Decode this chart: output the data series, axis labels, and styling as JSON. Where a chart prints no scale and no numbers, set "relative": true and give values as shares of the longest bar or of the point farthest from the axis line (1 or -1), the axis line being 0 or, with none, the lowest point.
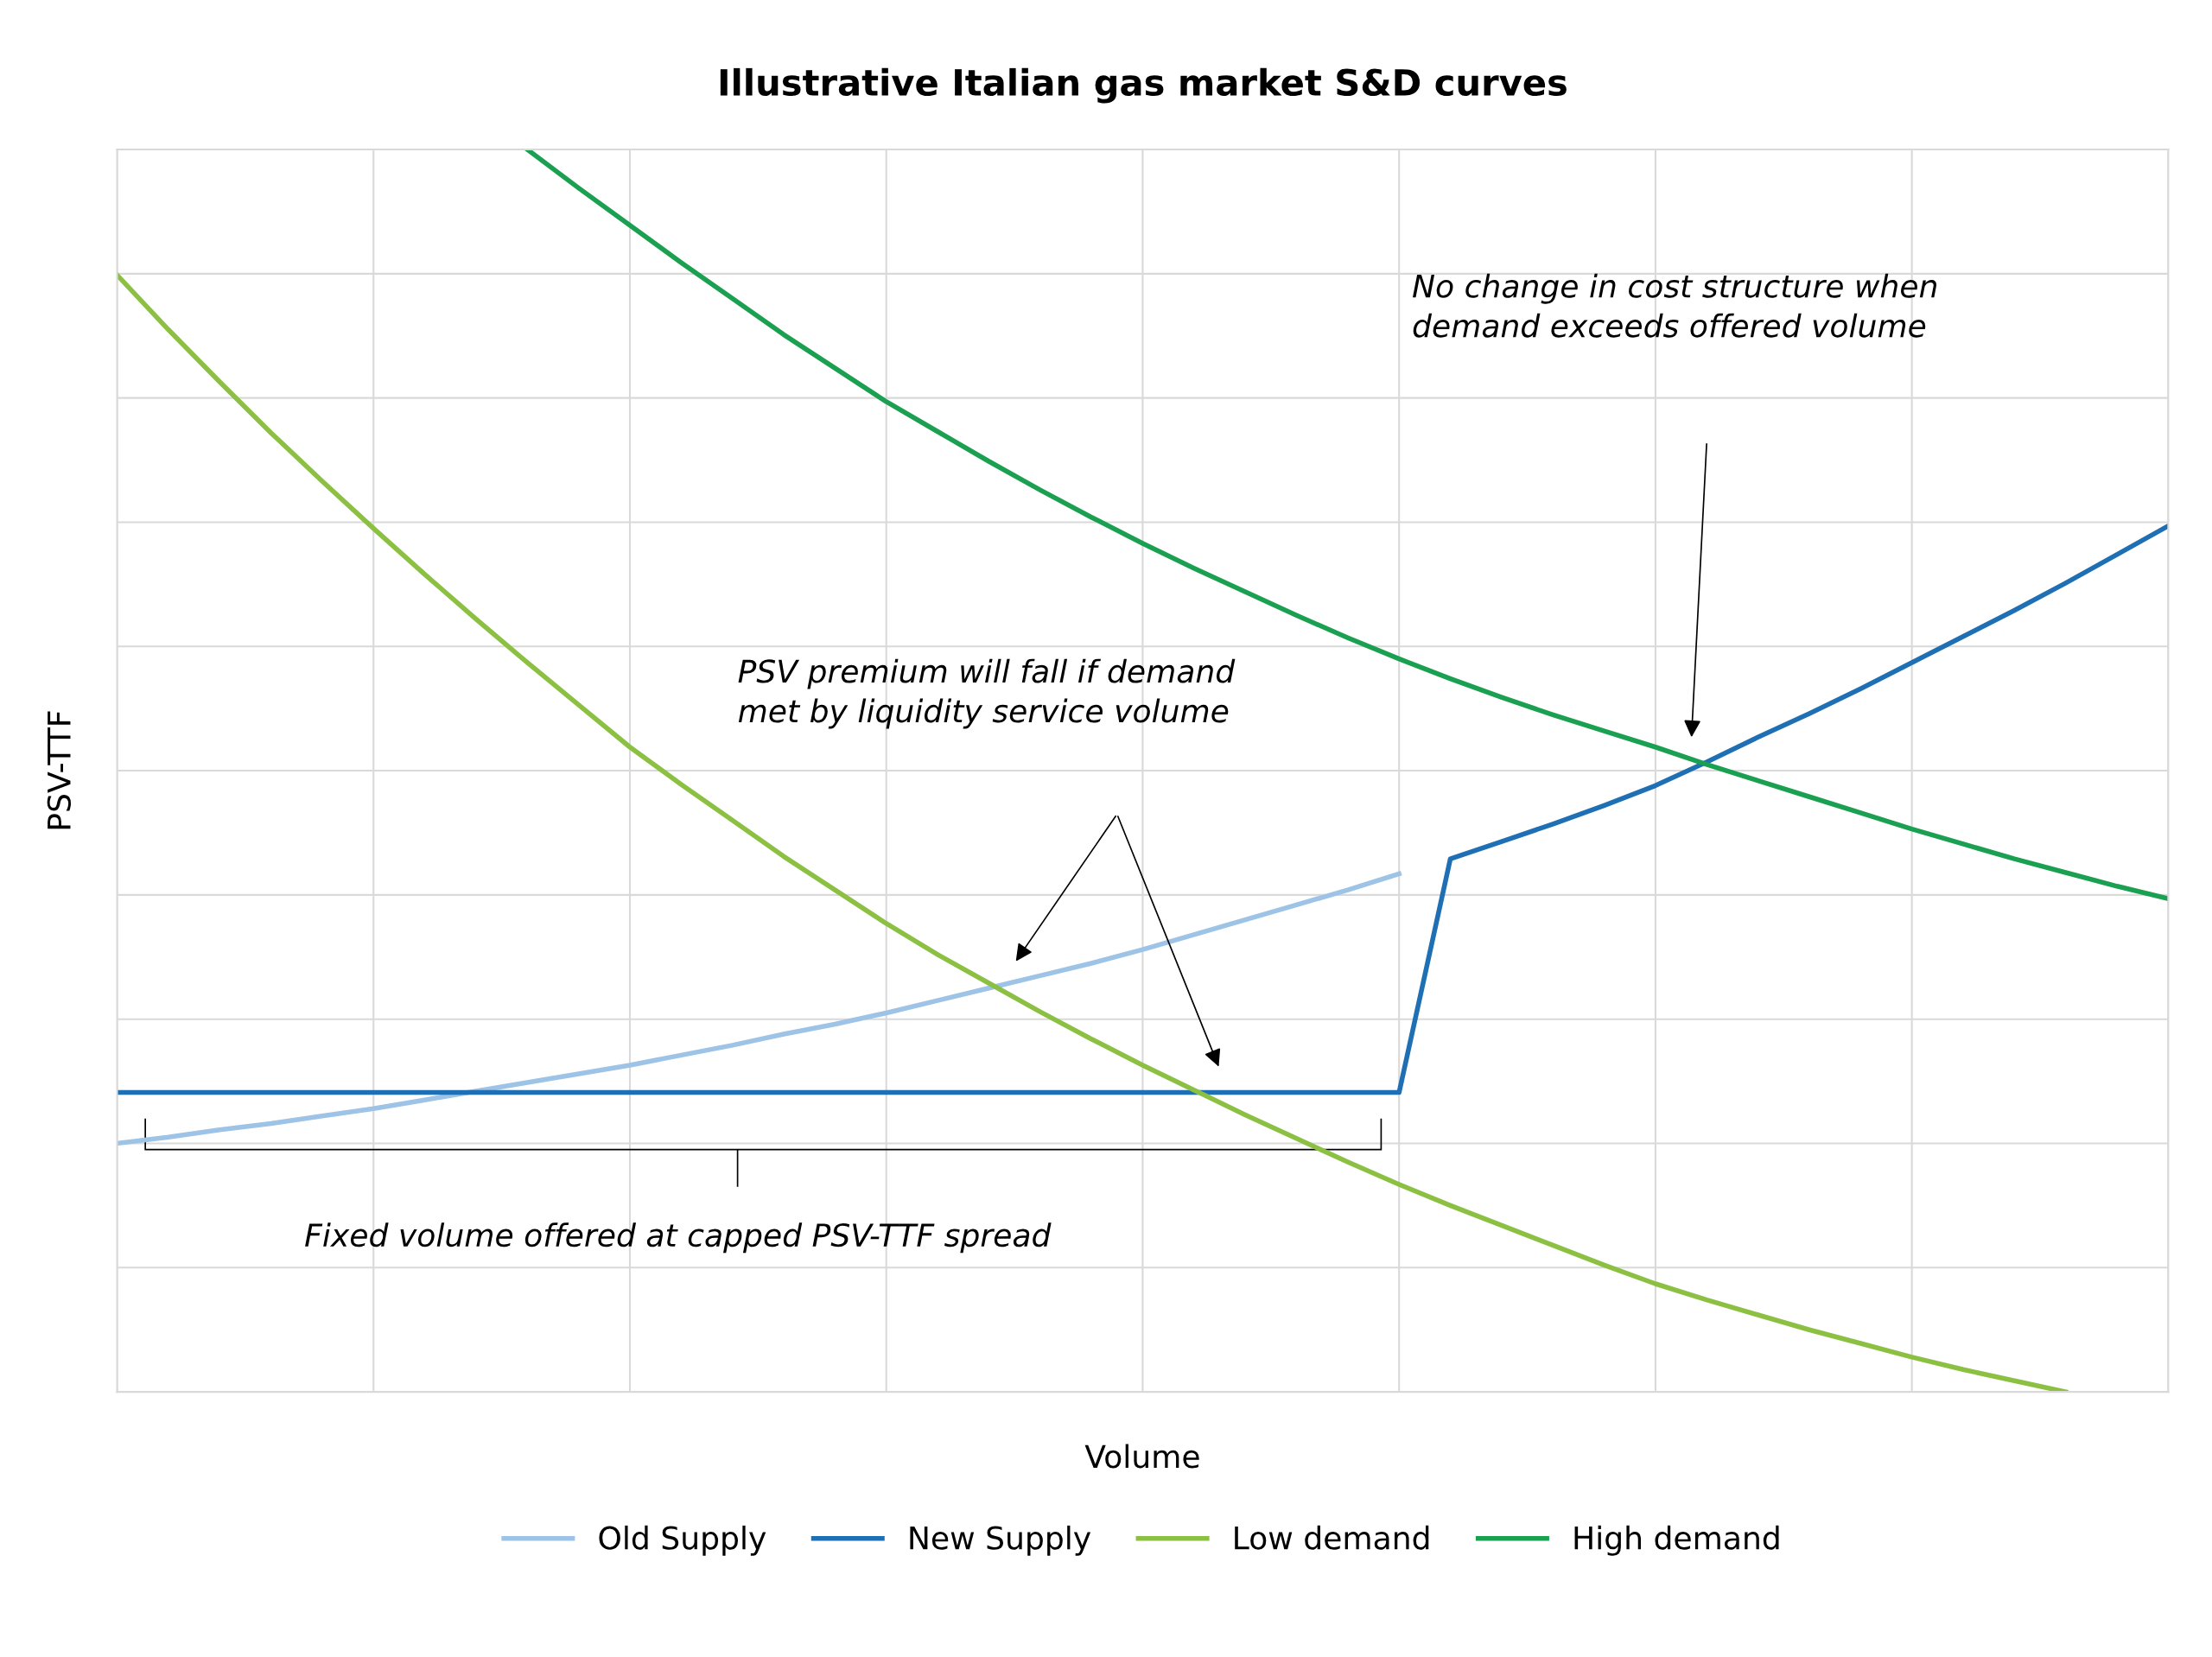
{
  "chart_data": {
    "type": "line",
    "title": "Illustrative Italian gas market S&D curves",
    "xlabel": "Volume",
    "ylabel": "PSV-TTF",
    "relative": true,
    "grid": true,
    "legend": "bottom",
    "marker": "none",
    "line_style": "solid",
    "categories": [
      null,
      null,
      null,
      null,
      null,
      null,
      null,
      null,
      null,
      null,
      null,
      null,
      null,
      null,
      null,
      null,
      null,
      null,
      null,
      null,
      null,
      null,
      null,
      null,
      null,
      null,
      null,
      null,
      null,
      null,
      null,
      null,
      null,
      null,
      null,
      null,
      null,
      null,
      null,
      null,
      null
    ],
    "series": [
      {
        "name": "Old Supply",
        "color": "#9dc3e6",
        "values": [
          0.2,
          0.205,
          0.211,
          0.216,
          0.222,
          0.228,
          0.235,
          0.242,
          0.249,
          0.256,
          0.263,
          0.271,
          0.279,
          0.288,
          0.296,
          0.305,
          0.315,
          0.325,
          0.335,
          0.345,
          0.356,
          0.368,
          0.38,
          0.392,
          0.404,
          0.417,
          null,
          null,
          null,
          null,
          null,
          null,
          null,
          null,
          null,
          null,
          null,
          null,
          null,
          null,
          null
        ]
      },
      {
        "name": "New Supply",
        "color": "#1f6fb4",
        "values": [
          0.241,
          0.241,
          0.241,
          0.241,
          0.241,
          0.241,
          0.241,
          0.241,
          0.241,
          0.241,
          0.241,
          0.241,
          0.241,
          0.241,
          0.241,
          0.241,
          0.241,
          0.241,
          0.241,
          0.241,
          0.241,
          0.241,
          0.241,
          0.241,
          0.241,
          0.241,
          0.429,
          0.443,
          0.457,
          0.472,
          0.488,
          0.507,
          0.527,
          0.546,
          0.566,
          0.587,
          0.608,
          0.629,
          0.651,
          0.674,
          0.697
        ]
      },
      {
        "name": "Low demand",
        "color": "#8cc043",
        "values": [
          0.899,
          0.855,
          0.813,
          0.772,
          0.733,
          0.695,
          0.658,
          0.622,
          0.587,
          0.553,
          0.519,
          0.489,
          0.46,
          0.431,
          0.404,
          0.377,
          0.352,
          0.329,
          0.306,
          0.284,
          0.263,
          0.243,
          0.223,
          0.204,
          0.185,
          0.167,
          0.15,
          0.134,
          0.118,
          0.102,
          0.087,
          0.074,
          0.062,
          0.05,
          0.039,
          0.028,
          0.018,
          0.009,
          0.0,
          null,
          null
        ]
      },
      {
        "name": "High demand",
        "color": "#1aa050",
        "values": [
          null,
          null,
          null,
          null,
          null,
          null,
          null,
          null,
          1.0,
          0.969,
          0.939,
          0.909,
          0.88,
          0.851,
          0.824,
          0.797,
          0.773,
          0.749,
          0.726,
          0.704,
          0.683,
          0.663,
          0.644,
          0.625,
          0.607,
          0.59,
          0.574,
          0.559,
          0.545,
          0.532,
          0.519,
          0.505,
          0.492,
          0.479,
          0.466,
          0.453,
          0.441,
          0.429,
          0.418,
          0.407,
          0.397
        ]
      }
    ],
    "annotations": [
      "No change in cost structure when\ndemand exceeds offered volume",
      "PSV premium will fall if demand\nmet by liquidity service volume",
      "Fixed volume offered at capped PSV-TTF spread"
    ]
  }
}
